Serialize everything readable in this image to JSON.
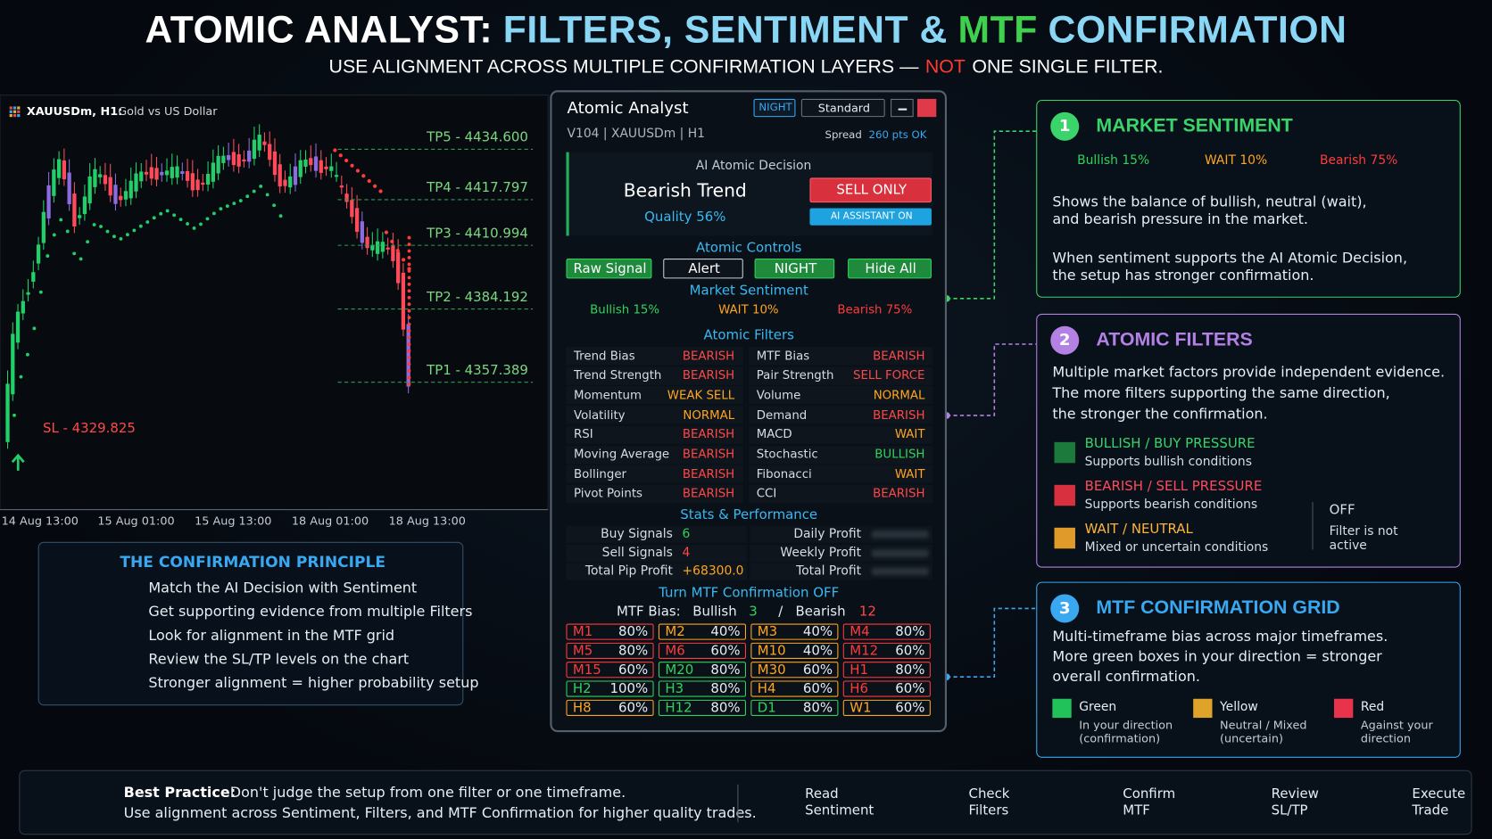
{
  "header": {
    "title_parts": [
      {
        "text": "ATOMIC ANALYST:",
        "color": "#ffffff"
      },
      {
        "text": "FILTERS, SENTIMENT &",
        "color": "#8ad6f5"
      },
      {
        "text": "MTF",
        "color": "#3fd04e"
      },
      {
        "text": "CONFIRMATION",
        "color": "#8ad6f5"
      }
    ],
    "subtitle_parts": [
      {
        "text": "USE ALIGNMENT ACROSS MULTIPLE CONFIRMATION LAYERS —",
        "color": "#ffffff"
      },
      {
        "text": "NOT",
        "color": "#ff3b30"
      },
      {
        "text": "ONE SINGLE FILTER.",
        "color": "#ffffff"
      }
    ]
  },
  "chart": {
    "symbol": "XAUUSDm, H1:",
    "description": "Gold vs US Dollar",
    "levels": [
      "TP5 - 4434.600",
      "TP4 - 4417.797",
      "TP3 - 4410.994",
      "TP2 - 4384.192",
      "TP1 - 4357.389"
    ],
    "stop": "SL - 4329.825",
    "x_labels": [
      "14 Aug 13:00",
      "15 Aug 01:00",
      "15 Aug 13:00",
      "18 Aug 01:00",
      "18 Aug 13:00"
    ]
  },
  "principle": {
    "title": "THE CONFIRMATION PRINCIPLE",
    "items": [
      "Match the AI Decision with Sentiment",
      "Get supporting evidence from multiple Filters",
      "Look for alignment in the MTF grid",
      "Review the SL/TP levels on the chart",
      "Stronger alignment = higher probability setup"
    ]
  },
  "panel": {
    "title": "Atomic Analyst",
    "mode": "NIGHT",
    "style": "Standard",
    "version": "V104 | XAUUSDm | H1",
    "spread_label": "Spread",
    "spread_value": "260 pts OK",
    "decision_label": "AI Atomic Decision",
    "decision": "Bearish Trend",
    "quality": "Quality 56%",
    "action": "SELL ONLY",
    "assistant": "AI ASSISTANT ON",
    "controls_title": "Atomic Controls",
    "controls": [
      "Raw Signal",
      "Alert",
      "NIGHT",
      "Hide All"
    ],
    "sentiment_title": "Market Sentiment",
    "filters_title": "Atomic Filters",
    "filters": [
      {
        "name": "Trend Bias",
        "value": "BEARISH",
        "color": "#ff4848"
      },
      {
        "name": "MTF Bias",
        "value": "BEARISH",
        "color": "#ff4848"
      },
      {
        "name": "Trend Strength",
        "value": "BEARISH",
        "color": "#ff4848"
      },
      {
        "name": "Pair Strength",
        "value": "SELL FORCE",
        "color": "#ff4848"
      },
      {
        "name": "Momentum",
        "value": "WEAK SELL",
        "color": "#ffa51f"
      },
      {
        "name": "Volume",
        "value": "NORMAL",
        "color": "#ffa51f"
      },
      {
        "name": "Volatility",
        "value": "NORMAL",
        "color": "#ffa51f"
      },
      {
        "name": "Demand",
        "value": "BEARISH",
        "color": "#ff4848"
      },
      {
        "name": "RSI",
        "value": "BEARISH",
        "color": "#ff4848"
      },
      {
        "name": "MACD",
        "value": "WAIT",
        "color": "#ffa51f"
      },
      {
        "name": "Moving Average",
        "value": "BEARISH",
        "color": "#ff4848"
      },
      {
        "name": "Stochastic",
        "value": "BULLISH",
        "color": "#2fd35b"
      },
      {
        "name": "Bollinger",
        "value": "BEARISH",
        "color": "#ff4848"
      },
      {
        "name": "Fibonacci",
        "value": "WAIT",
        "color": "#ffa51f"
      },
      {
        "name": "Pivot Points",
        "value": "BEARISH",
        "color": "#ff4848"
      },
      {
        "name": "CCI",
        "value": "BEARISH",
        "color": "#ff4848"
      }
    ],
    "stats_title": "Stats & Performance",
    "stats_left": [
      {
        "label": "Buy Signals",
        "value": "6",
        "color": "#2fd35b"
      },
      {
        "label": "Sell Signals",
        "value": "4",
        "color": "#ff4848"
      },
      {
        "label": "Total Pip Profit",
        "value": "+68300.0",
        "color": "#ffa51f"
      }
    ],
    "stats_right": [
      "Daily Profit",
      "Weekly Profit",
      "Total Profit"
    ],
    "mtf_toggle": "Turn MTF Confirmation OFF",
    "mtf_bias_label": "MTF Bias:",
    "bull_label": "Bullish",
    "bull_count": "3",
    "separator": "/",
    "bear_label": "Bearish",
    "bear_count": "12",
    "mtf": [
      {
        "tf": "M1",
        "value": "80%",
        "color": "#ff3b3b"
      },
      {
        "tf": "M2",
        "value": "40%",
        "color": "#ffa51f"
      },
      {
        "tf": "M3",
        "value": "40%",
        "color": "#ffa51f"
      },
      {
        "tf": "M4",
        "value": "80%",
        "color": "#ff3b3b"
      },
      {
        "tf": "M5",
        "value": "80%",
        "color": "#ff3b3b"
      },
      {
        "tf": "M6",
        "value": "60%",
        "color": "#ff3b3b"
      },
      {
        "tf": "M10",
        "value": "40%",
        "color": "#ffa51f"
      },
      {
        "tf": "M12",
        "value": "60%",
        "color": "#ff3b3b"
      },
      {
        "tf": "M15",
        "value": "60%",
        "color": "#ff3b3b"
      },
      {
        "tf": "M20",
        "value": "80%",
        "color": "#2fd35b"
      },
      {
        "tf": "M30",
        "value": "60%",
        "color": "#ffa51f"
      },
      {
        "tf": "H1",
        "value": "80%",
        "color": "#ff3b3b"
      },
      {
        "tf": "H2",
        "value": "100%",
        "color": "#2fd35b"
      },
      {
        "tf": "H3",
        "value": "80%",
        "color": "#2fd35b"
      },
      {
        "tf": "H4",
        "value": "60%",
        "color": "#ffa51f"
      },
      {
        "tf": "H6",
        "value": "60%",
        "color": "#ff3b3b"
      },
      {
        "tf": "H8",
        "value": "60%",
        "color": "#ffa51f"
      },
      {
        "tf": "H12",
        "value": "80%",
        "color": "#2fd35b"
      },
      {
        "tf": "D1",
        "value": "80%",
        "color": "#2fd35b"
      },
      {
        "tf": "W1",
        "value": "60%",
        "color": "#ffa51f"
      }
    ]
  },
  "sentiment": {
    "labels": [
      "Bullish 15%",
      "WAIT 10%",
      "Bearish 75%"
    ],
    "values": [
      15,
      10,
      75
    ],
    "colors": [
      "#2fd35b",
      "#ffa51f",
      "#ff3b3b"
    ]
  },
  "cards": [
    {
      "number": "1",
      "title": "MARKET SENTIMENT",
      "color": "#3ad46a",
      "paragraphs": [
        "Shows the balance of bullish, neutral (wait),\nand bearish pressure in the market.",
        "When sentiment supports the AI Atomic Decision,\nthe setup has stronger confirmation."
      ]
    },
    {
      "number": "2",
      "title": "ATOMIC FILTERS",
      "color": "#b380e3",
      "paragraphs": [
        "Multiple market factors provide independent evidence.\nThe more filters supporting the same direction,\nthe stronger the confirmation."
      ],
      "legend": [
        {
          "title": "BULLISH / BUY PRESSURE",
          "desc": "Supports bullish conditions",
          "color": "#1d7a3d",
          "title_color": "#3ad46a"
        },
        {
          "title": "BEARISH / SELL PRESSURE",
          "desc": "Supports bearish conditions",
          "color": "#d8303f",
          "title_color": "#ff4a5a"
        },
        {
          "title": "WAIT / NEUTRAL",
          "desc": "Mixed or uncertain conditions",
          "color": "#e09a2a",
          "title_color": "#ffb43a"
        }
      ],
      "off_label": "OFF",
      "off_desc": "Filter is not\nactive"
    },
    {
      "number": "3",
      "title": "MTF CONFIRMATION GRID",
      "color": "#3aa8f0",
      "paragraphs": [
        "Multi-timeframe bias across major timeframes.\nMore green boxes in your direction = stronger\noverall confirmation."
      ],
      "legend": [
        {
          "title": "Green",
          "desc": "In your direction\n(confirmation)",
          "color": "#22c25a"
        },
        {
          "title": "Yellow",
          "desc": "Neutral / Mixed\n(uncertain)",
          "color": "#e0a32a"
        },
        {
          "title": "Red",
          "desc": "Against your\ndirection",
          "color": "#e8344a"
        }
      ]
    }
  ],
  "footer": {
    "best_label": "Best Practice:",
    "line1": " Don't judge the setup from one filter or one timeframe.",
    "line2": "Use alignment across Sentiment, Filters, and MTF Confirmation for higher quality trades.",
    "steps": [
      "Read\nSentiment",
      "Check\nFilters",
      "Confirm\nMTF",
      "Review\nSL/TP",
      "Execute\nTrade"
    ]
  }
}
